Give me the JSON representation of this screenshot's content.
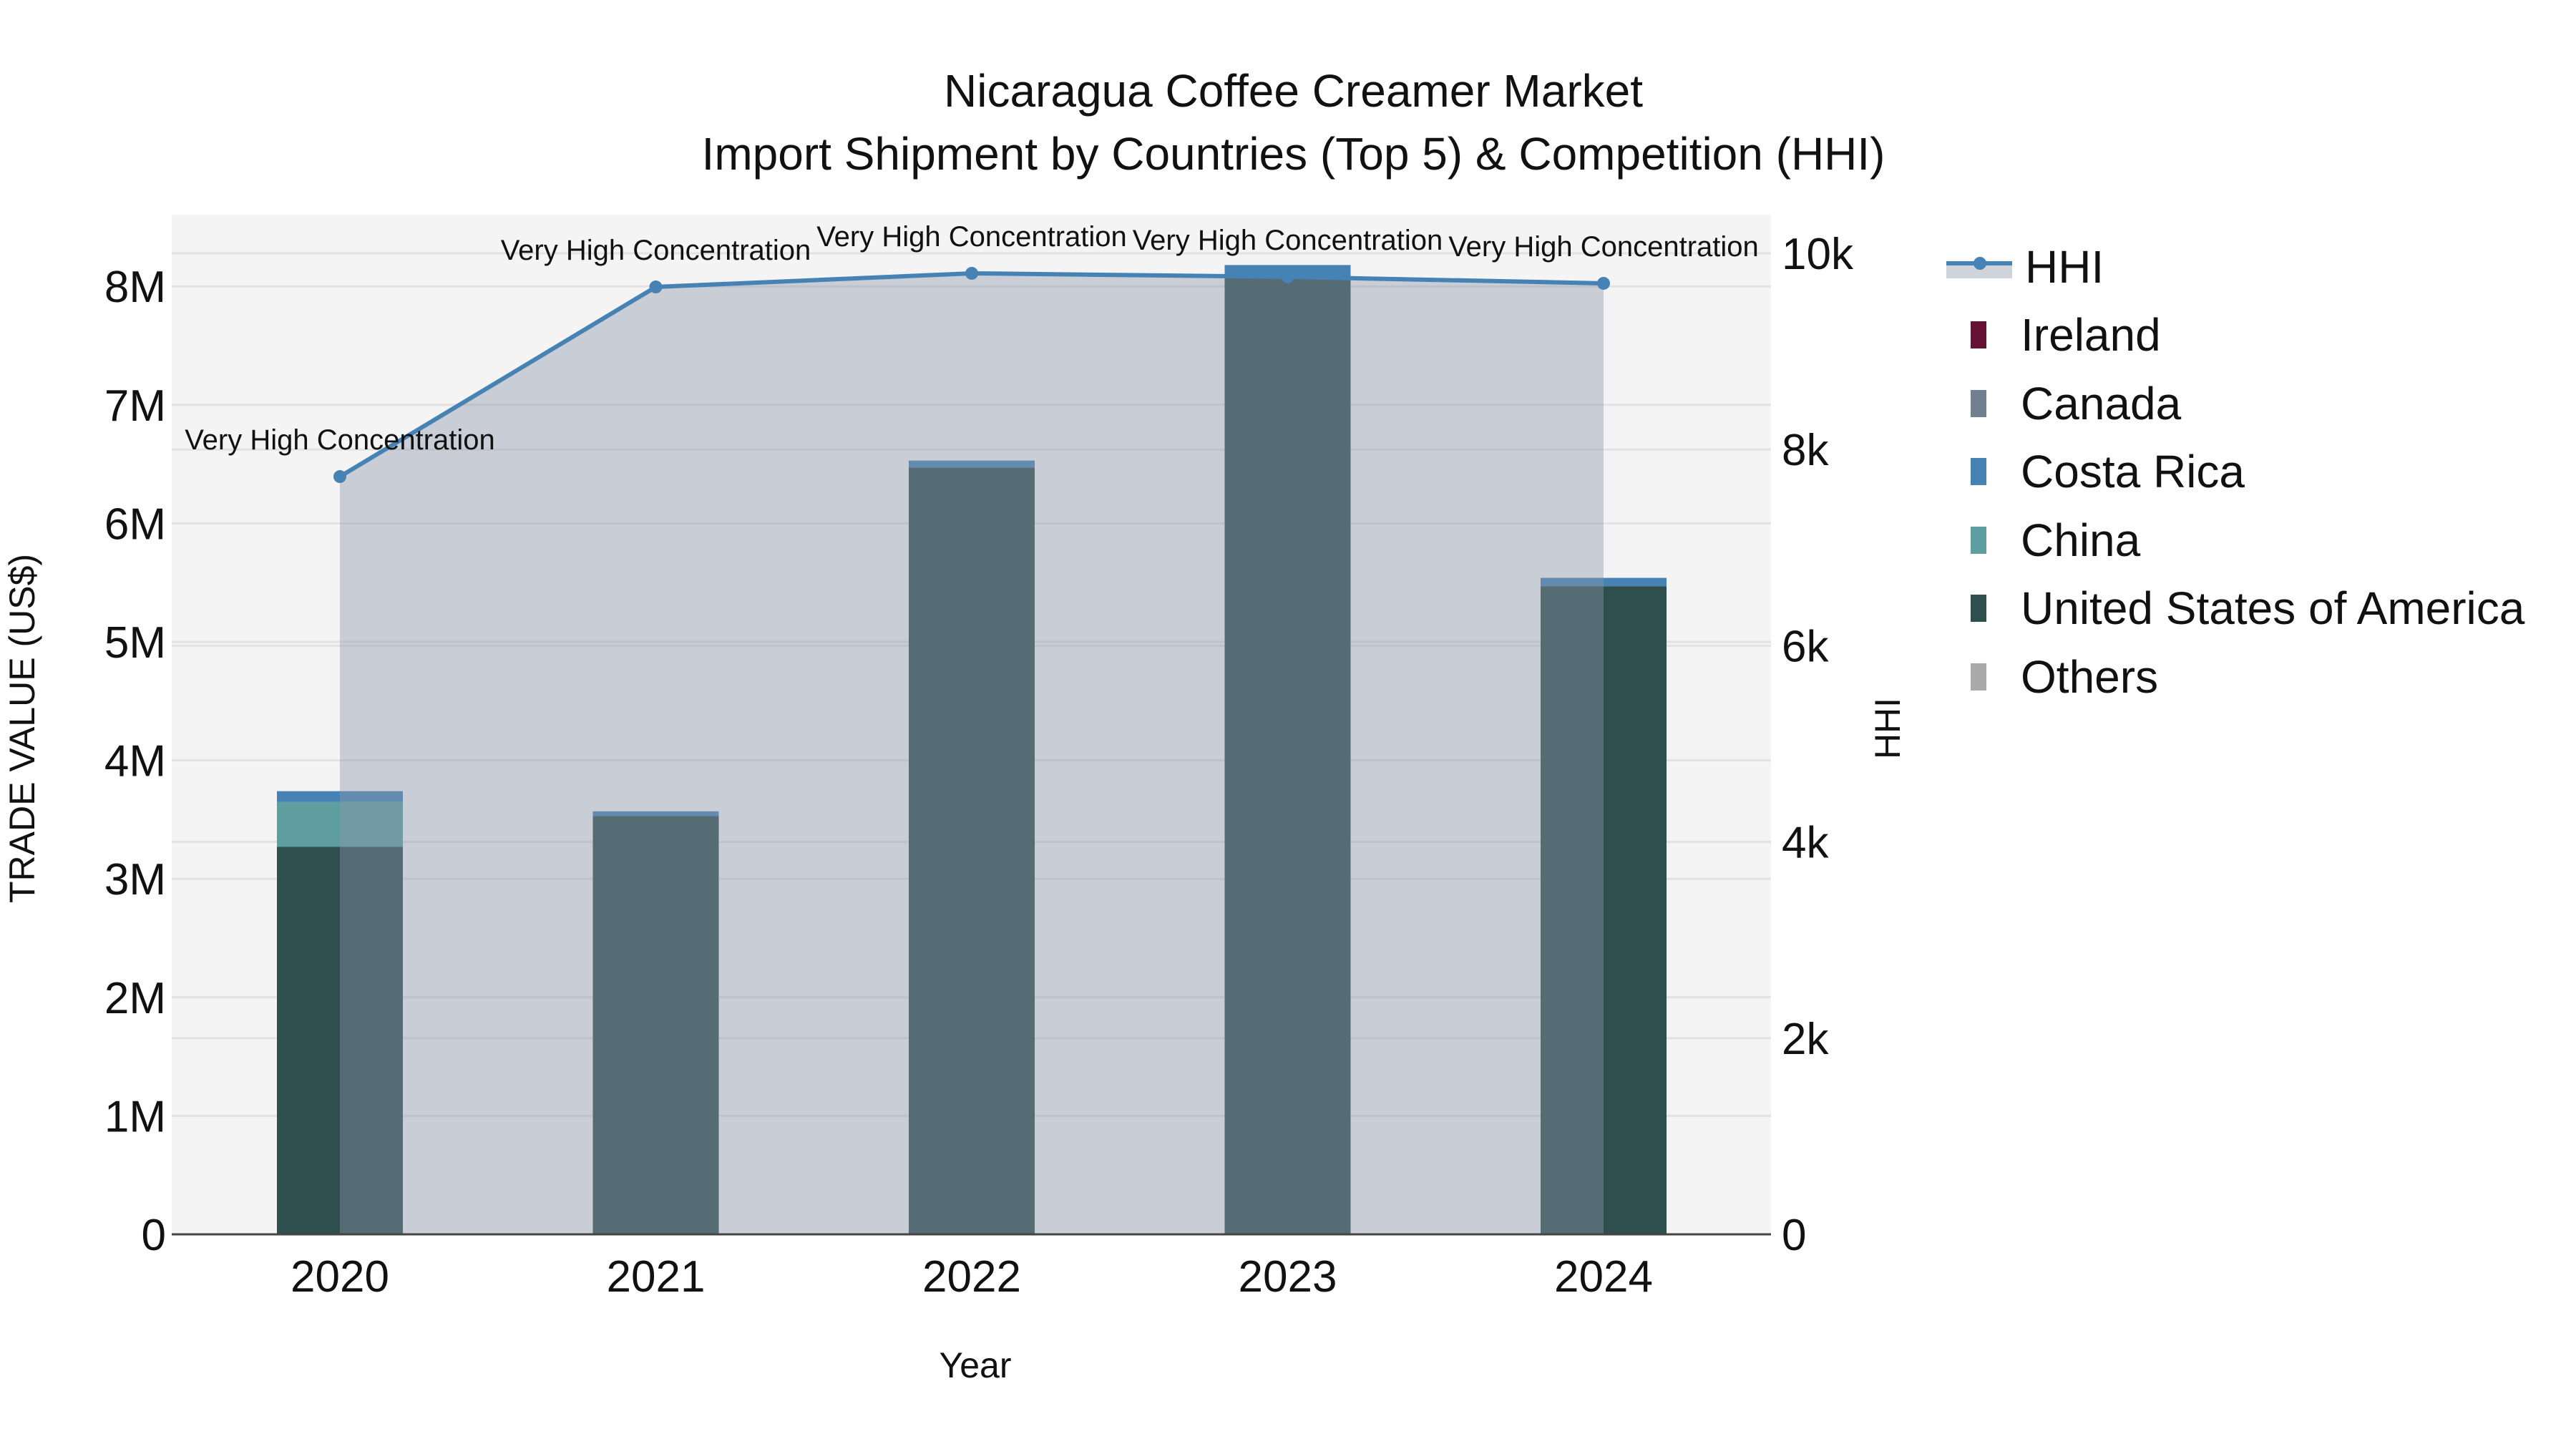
{
  "title": {
    "line1": "Nicaragua Coffee Creamer Market",
    "line2": "Import Shipment by Countries (Top 5) & Competition (HHI)"
  },
  "axes": {
    "x_title": "Year",
    "y_left_title": "TRADE VALUE (US$)",
    "y_right_title": "HHI",
    "y_left_ticks": [
      "0",
      "1M",
      "2M",
      "3M",
      "4M",
      "5M",
      "6M",
      "7M",
      "8M"
    ],
    "y_right_ticks": [
      "0",
      "2k",
      "4k",
      "6k",
      "8k",
      "10k"
    ]
  },
  "legend": {
    "items": [
      {
        "label": "HHI",
        "type": "line",
        "color": "#4682B4"
      },
      {
        "label": "Ireland",
        "type": "bar",
        "color": "#651235"
      },
      {
        "label": "Canada",
        "type": "bar",
        "color": "#708090"
      },
      {
        "label": "Costa Rica",
        "type": "bar",
        "color": "#4682B4"
      },
      {
        "label": "China",
        "type": "bar",
        "color": "#5F9EA0"
      },
      {
        "label": "United States of America",
        "type": "bar",
        "color": "#2F4F4F"
      },
      {
        "label": "Others",
        "type": "bar",
        "color": "#A9A9A9"
      }
    ]
  },
  "colors": {
    "plot_bg": "#f4f4f4",
    "grid": "#e2e2e2",
    "hhi_line": "#4682B4",
    "hhi_fill": "rgba(140,150,170,0.42)",
    "axis_line": "#444444"
  },
  "chart_data": {
    "type": "bar",
    "title": "Nicaragua Coffee Creamer Market — Import Shipment by Countries (Top 5) & Competition (HHI)",
    "xlabel": "Year",
    "ylabel": "TRADE VALUE (US$)",
    "y2label": "HHI",
    "categories": [
      "2020",
      "2021",
      "2022",
      "2023",
      "2024"
    ],
    "ylim": [
      0,
      8600000
    ],
    "y2lim": [
      0,
      10380
    ],
    "stacked": true,
    "series": [
      {
        "name": "United States of America",
        "color": "#2F4F4F",
        "values": [
          3270000,
          3530000,
          6470000,
          8080000,
          5470000
        ]
      },
      {
        "name": "China",
        "color": "#5F9EA0",
        "values": [
          380000,
          0,
          0,
          0,
          0
        ]
      },
      {
        "name": "Costa Rica",
        "color": "#4682B4",
        "values": [
          90000,
          40000,
          60000,
          100000,
          70000
        ]
      },
      {
        "name": "Canada",
        "color": "#708090",
        "values": [
          0,
          0,
          0,
          0,
          0
        ]
      },
      {
        "name": "Ireland",
        "color": "#651235",
        "values": [
          0,
          0,
          0,
          0,
          0
        ]
      },
      {
        "name": "Others",
        "color": "#A9A9A9",
        "values": [
          0,
          0,
          0,
          0,
          0
        ]
      }
    ],
    "line_series": {
      "name": "HHI",
      "axis": "right",
      "color": "#4682B4",
      "values": [
        7724,
        9657,
        9796,
        9760,
        9694
      ],
      "annotations": [
        "Very High Concentration",
        "Very High Concentration",
        "Very High Concentration",
        "Very High Concentration",
        "Very High Concentration"
      ]
    },
    "legend_position": "right",
    "grid": true
  }
}
